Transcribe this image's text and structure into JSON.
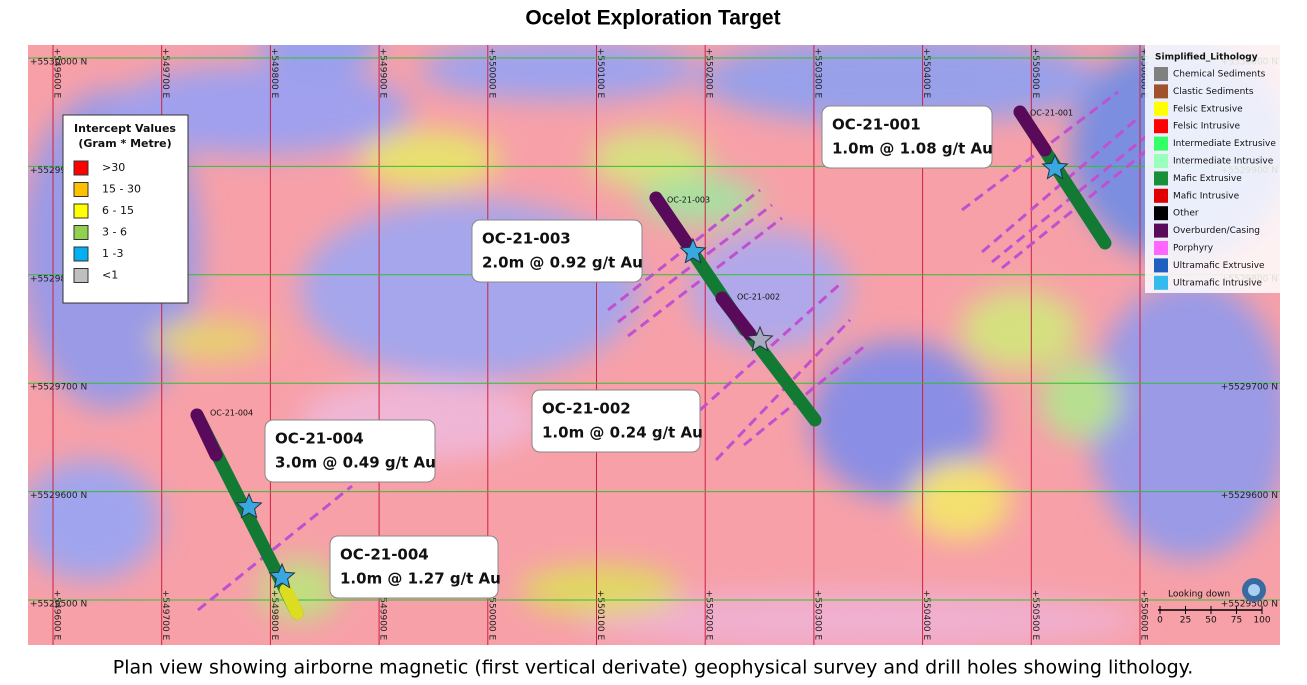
{
  "title": "Ocelot Exploration Target",
  "caption": "Plan view showing airborne magnetic (first vertical derivate) geophysical survey and drill holes showing lithology.",
  "eastings": [
    "+549600 E",
    "+549700 E",
    "+549800 E",
    "+549900 E",
    "+550000 E",
    "+550100 E",
    "+550200 E",
    "+550300 E",
    "+550400 E",
    "+550500 E",
    "+550600 E"
  ],
  "northings": [
    "+5530000 N",
    "+5529900 N",
    "+5529800 N",
    "+5529700 N",
    "+5529600 N",
    "+5529500 N"
  ],
  "intercept_legend": {
    "title": [
      "Intercept Values",
      "(Gram * Metre)"
    ],
    "items": [
      {
        "label": ">30",
        "color": "#ff0000"
      },
      {
        "label": "15 - 30",
        "color": "#ffc000"
      },
      {
        "label": "6 - 15",
        "color": "#ffff00"
      },
      {
        "label": "3 - 6",
        "color": "#92d050"
      },
      {
        "label": "1 -3",
        "color": "#00b0f0"
      },
      {
        "label": "<1",
        "color": "#bfbfbf"
      }
    ]
  },
  "lithology_legend": {
    "title": "Simplified_Lithology",
    "items": [
      {
        "label": "Chemical Sediments",
        "color": "#808080"
      },
      {
        "label": "Clastic Sediments",
        "color": "#a0522d"
      },
      {
        "label": "Felsic Extrusive",
        "color": "#ffff00"
      },
      {
        "label": "Felsic Intrusive",
        "color": "#ff0000"
      },
      {
        "label": "Intermediate Extrusive",
        "color": "#33ff66"
      },
      {
        "label": "Intermediate Intrusive",
        "color": "#99ffbb"
      },
      {
        "label": "Mafic Extrusive",
        "color": "#1a8f3a"
      },
      {
        "label": "Mafic Intrusive",
        "color": "#e00000"
      },
      {
        "label": "Other",
        "color": "#000000"
      },
      {
        "label": "Overburden/Casing",
        "color": "#5a0a5a"
      },
      {
        "label": "Porphyry",
        "color": "#ff66ff"
      },
      {
        "label": "Ultramafic Extrusive",
        "color": "#1f5fbf"
      },
      {
        "label": "Ultramafic Intrusive",
        "color": "#33bbee"
      }
    ]
  },
  "holes": [
    "OC-21-001",
    "OC-21-003",
    "OC-21-002",
    "OC-21-004"
  ],
  "callouts": [
    {
      "hole": "OC-21-001",
      "text": "1.0m @ 1.08 g/t Au"
    },
    {
      "hole": "OC-21-003",
      "text": "2.0m @ 0.92 g/t Au"
    },
    {
      "hole": "OC-21-002",
      "text": "1.0m @ 0.24 g/t Au"
    },
    {
      "hole": "OC-21-004",
      "text": "3.0m @ 0.49 g/t Au"
    },
    {
      "hole": "OC-21-004",
      "text": "1.0m @ 1.27 g/t Au"
    }
  ],
  "orientation": "Looking down",
  "scale_labels": [
    "0",
    "25",
    "50",
    "75",
    "100"
  ]
}
